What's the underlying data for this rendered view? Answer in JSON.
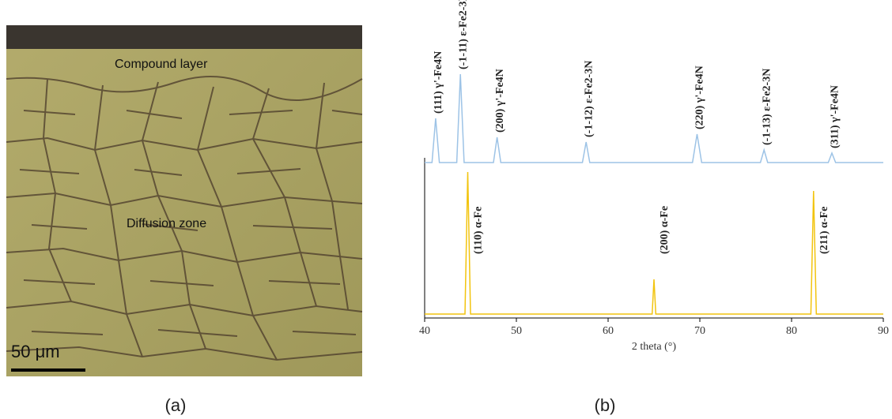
{
  "panel_a": {
    "caption": "(a)",
    "labels": [
      "Compound layer",
      "Diffusion zone"
    ],
    "scale_bar": "50 μm"
  },
  "chart_data": {
    "type": "line",
    "caption": "(b)",
    "xlabel": "2 theta (°)",
    "xlim": [
      40,
      90
    ],
    "xticks": [
      40,
      50,
      60,
      70,
      80,
      90
    ],
    "ylim": [
      0,
      100
    ],
    "series": [
      {
        "color": "#9dc3e6",
        "x": [
          40,
          40.8,
          41.2,
          41.6,
          43.5,
          43.9,
          44.3,
          47.5,
          47.9,
          48.3,
          57.2,
          57.6,
          58.0,
          69.2,
          69.7,
          70.2,
          76.6,
          77,
          77.4,
          84.0,
          84.4,
          84.8,
          90
        ],
        "values": [
          51,
          51,
          65,
          51,
          51,
          79,
          51,
          51,
          59,
          51,
          51,
          57.5,
          51,
          51,
          60,
          51,
          51,
          55,
          51,
          51,
          54,
          51,
          51
        ],
        "labels": [
          null,
          null,
          "(111) γ'-Fe4N",
          null,
          null,
          "(-1-11) ε-Fe2-3N",
          null,
          null,
          "(200) γ'-Fe4N",
          null,
          null,
          "(-1-12) ε-Fe2-3N",
          null,
          null,
          "(220) γ'-Fe4N",
          null,
          null,
          "(-1-13) ε-Fe2-3N",
          null,
          null,
          "(311) γ'-Fe4N",
          null,
          null
        ]
      },
      {
        "color": "#f2c40f",
        "x": [
          40,
          44.4,
          44.7,
          45.0,
          64.8,
          65,
          65.2,
          82.1,
          82.4,
          82.7,
          90
        ],
        "values": [
          3,
          3,
          48,
          3,
          3,
          14,
          3,
          3,
          42,
          3,
          3
        ],
        "labels": [
          null,
          null,
          "(110) α-Fe",
          null,
          null,
          "(200) α-Fe",
          null,
          null,
          "(211) α-Fe",
          null,
          null
        ]
      }
    ]
  }
}
